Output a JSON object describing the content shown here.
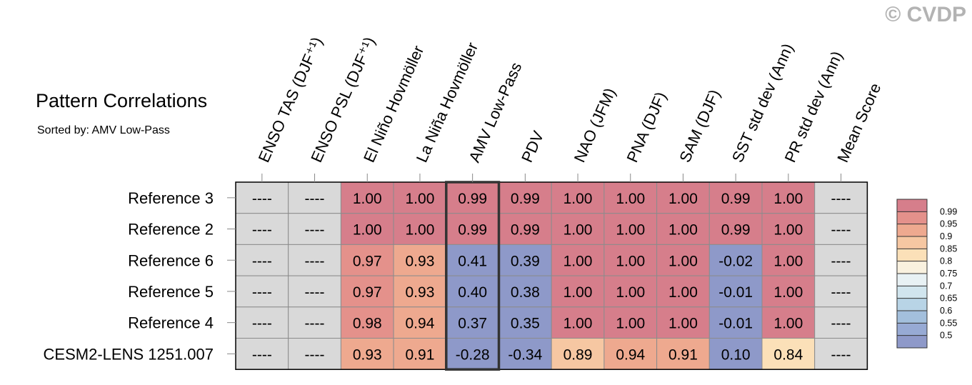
{
  "title": "Pattern Correlations",
  "subtitle": "Sorted by: AMV Low-Pass",
  "copyright": "© CVDP",
  "chart_data": {
    "type": "heatmap",
    "columns": [
      "ENSO TAS (DJF⁺¹)",
      "ENSO PSL (DJF⁺¹)",
      "El Niño Hovmöller",
      "La Niña Hovmöller",
      "AMV Low-Pass",
      "PDV",
      "NAO (JFM)",
      "PNA (DJF)",
      "SAM (DJF)",
      "SST std dev (Ann)",
      "PR std dev (Ann)",
      "Mean Score"
    ],
    "rows": [
      "Reference 3",
      "Reference 2",
      "Reference 6",
      "Reference 5",
      "Reference 4",
      "CESM2-LENS 1251.007"
    ],
    "values": [
      [
        null,
        null,
        1.0,
        1.0,
        0.99,
        0.99,
        1.0,
        1.0,
        1.0,
        0.99,
        1.0,
        null
      ],
      [
        null,
        null,
        1.0,
        1.0,
        0.99,
        0.99,
        1.0,
        1.0,
        1.0,
        0.99,
        1.0,
        null
      ],
      [
        null,
        null,
        0.97,
        0.93,
        0.41,
        0.39,
        1.0,
        1.0,
        1.0,
        -0.02,
        1.0,
        null
      ],
      [
        null,
        null,
        0.97,
        0.93,
        0.4,
        0.38,
        1.0,
        1.0,
        1.0,
        -0.01,
        1.0,
        null
      ],
      [
        null,
        null,
        0.98,
        0.94,
        0.37,
        0.35,
        1.0,
        1.0,
        1.0,
        -0.01,
        1.0,
        null
      ],
      [
        null,
        null,
        0.93,
        0.91,
        -0.28,
        -0.34,
        0.89,
        0.94,
        0.91,
        0.1,
        0.84,
        null
      ]
    ],
    "missing_label": "----",
    "highlighted_column": "AMV Low-Pass",
    "colorbar": {
      "labels": [
        "0.99",
        "0.95",
        "0.9",
        "0.85",
        "0.8",
        "0.75",
        "0.7",
        "0.65",
        "0.6",
        "0.55",
        "0.5"
      ],
      "colors": [
        "#d67e8b",
        "#e4918b",
        "#eea98f",
        "#f6c7a2",
        "#fbe0b8",
        "#f9f1df",
        "#e8f1f4",
        "#d1e5ee",
        "#b8d4e6",
        "#a3bfdc",
        "#97aad4",
        "#8e99c9"
      ]
    },
    "missing_color": "#d9d9d9"
  }
}
